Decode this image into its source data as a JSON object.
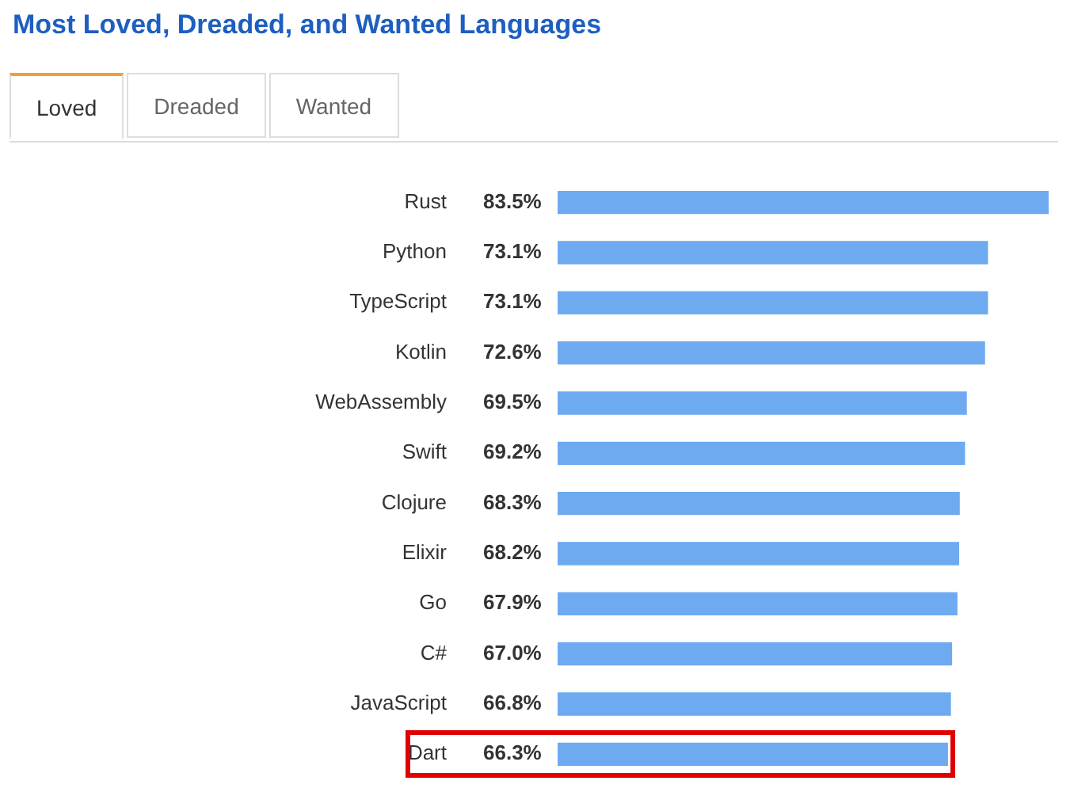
{
  "chart_data": {
    "type": "bar",
    "orientation": "horizontal",
    "title": "Most Loved, Dreaded, and Wanted Languages",
    "annotations": [
      "Loved",
      "Dreaded",
      "Wanted"
    ],
    "categories": [
      "Rust",
      "Python",
      "TypeScript",
      "Kotlin",
      "WebAssembly",
      "Swift",
      "Clojure",
      "Elixir",
      "Go",
      "C#",
      "JavaScript",
      "Dart"
    ],
    "values": [
      83.5,
      73.1,
      73.1,
      72.6,
      69.5,
      69.2,
      68.3,
      68.2,
      67.9,
      67.0,
      66.8,
      66.3
    ],
    "value_labels": [
      "83.5%",
      "73.1%",
      "73.1%",
      "72.6%",
      "69.5%",
      "69.2%",
      "68.3%",
      "68.2%",
      "67.9%",
      "67.0%",
      "66.8%",
      "66.3%"
    ],
    "color": "#6eaaf0",
    "grid": false,
    "legend": false
  }
}
